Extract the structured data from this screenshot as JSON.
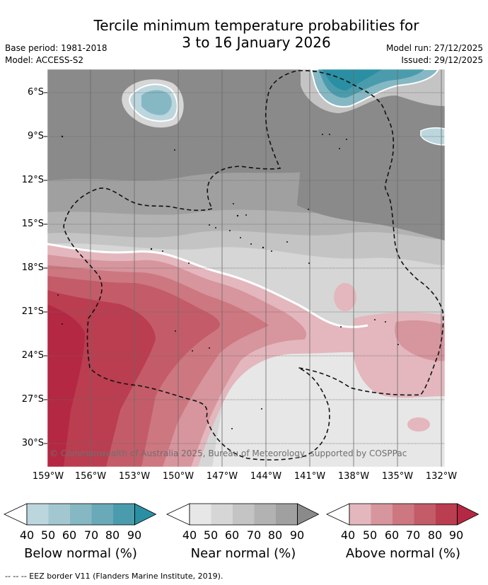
{
  "title": {
    "line1": "Tercile minimum temperature probabilities for",
    "line2": "3 to 16 January 2026"
  },
  "meta_left": {
    "base_period": "Base period: 1981-2018",
    "model": "Model: ACCESS-S2"
  },
  "meta_right": {
    "model_run": "Model run: 27/12/2025",
    "issued": "Issued: 29/12/2025"
  },
  "map": {
    "lat_labels": [
      "6°S",
      "9°S",
      "12°S",
      "15°S",
      "18°S",
      "21°S",
      "24°S",
      "27°S",
      "30°S"
    ],
    "lon_labels": [
      "159°W",
      "156°W",
      "153°W",
      "150°W",
      "147°W",
      "144°W",
      "141°W",
      "138°W",
      "135°W",
      "132°W"
    ],
    "copyright": "© Commonwealth of Australia 2025, Bureau of Meteorology, supported by COSPPac"
  },
  "colorbars": [
    {
      "title": "Below normal (%)",
      "ticks": [
        "40",
        "50",
        "60",
        "70",
        "80",
        "90"
      ],
      "colors": [
        "#ffffff",
        "#bcd6de",
        "#a2c7d1",
        "#86b8c4",
        "#69a9b8",
        "#4a9cad",
        "#2a8fa3"
      ]
    },
    {
      "title": "Near normal (%)",
      "ticks": [
        "40",
        "50",
        "60",
        "70",
        "80",
        "90"
      ],
      "colors": [
        "#ffffff",
        "#e7e7e7",
        "#d6d6d6",
        "#c4c4c4",
        "#b2b2b2",
        "#a0a0a0",
        "#8a8a8a"
      ]
    },
    {
      "title": "Above normal (%)",
      "ticks": [
        "40",
        "50",
        "60",
        "70",
        "80",
        "90"
      ],
      "colors": [
        "#ffffff",
        "#e3b7bd",
        "#d7959d",
        "#cd7780",
        "#c35c68",
        "#bb3d50",
        "#b42843"
      ]
    }
  ],
  "footer": "-- -- -- EEZ border V11 (Flanders Marine Institute, 2019)."
}
